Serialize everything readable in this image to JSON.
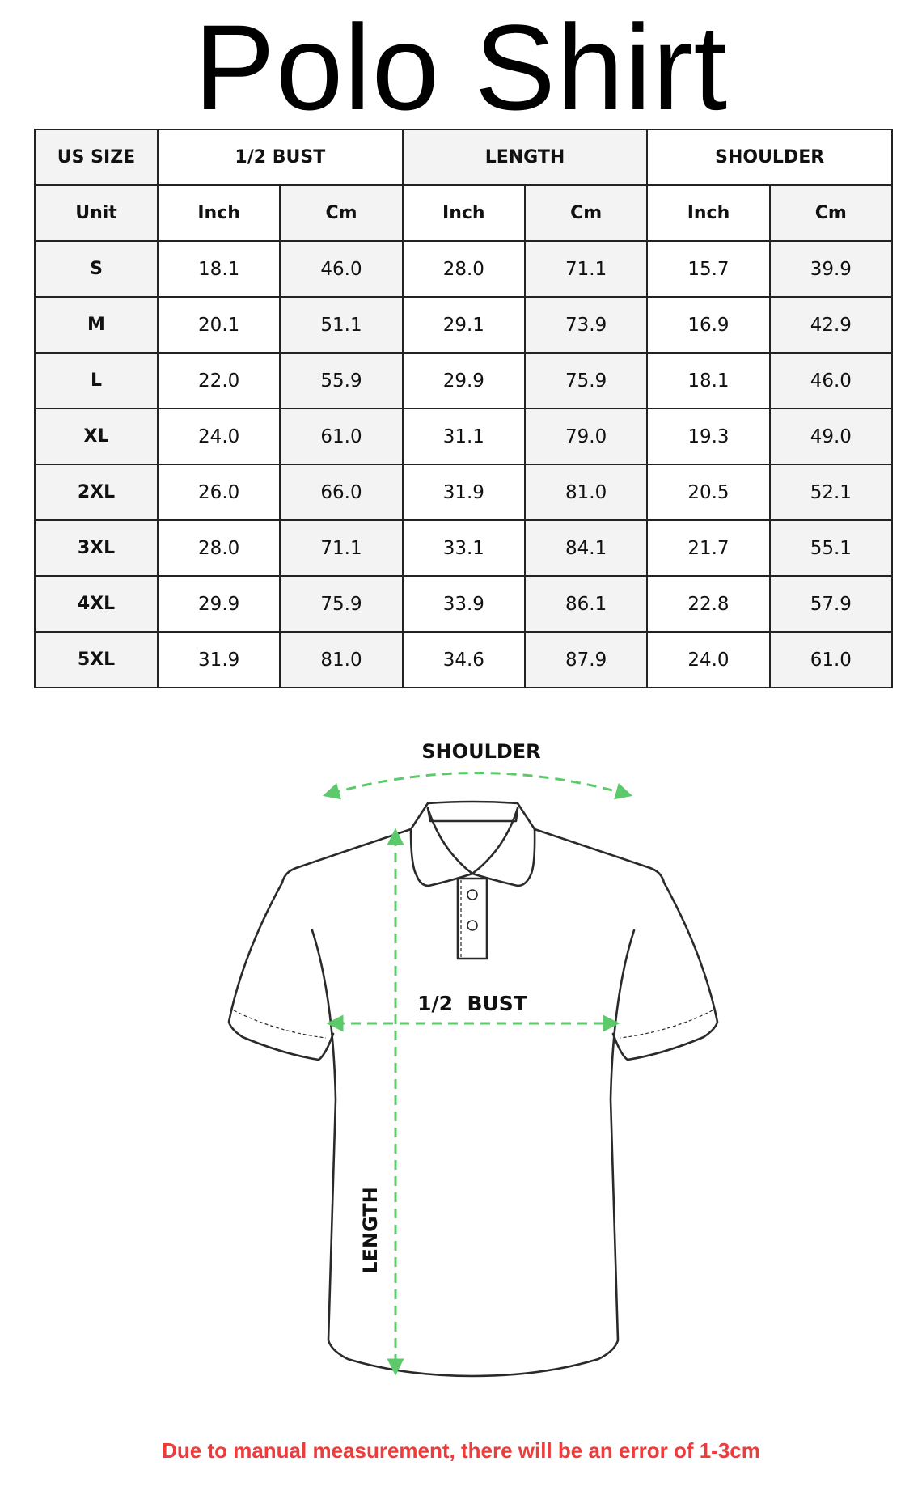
{
  "title": "Polo Shirt",
  "table": {
    "group_headers": [
      "US SIZE",
      "1/2 BUST",
      "LENGTH",
      "SHOULDER"
    ],
    "unit_row": [
      "Unit",
      "Inch",
      "Cm",
      "Inch",
      "Cm",
      "Inch",
      "Cm"
    ],
    "rows": [
      [
        "S",
        "18.1",
        "46.0",
        "28.0",
        "71.1",
        "15.7",
        "39.9"
      ],
      [
        "M",
        "20.1",
        "51.1",
        "29.1",
        "73.9",
        "16.9",
        "42.9"
      ],
      [
        "L",
        "22.0",
        "55.9",
        "29.9",
        "75.9",
        "18.1",
        "46.0"
      ],
      [
        "XL",
        "24.0",
        "61.0",
        "31.1",
        "79.0",
        "19.3",
        "49.0"
      ],
      [
        "2XL",
        "26.0",
        "66.0",
        "31.9",
        "81.0",
        "20.5",
        "52.1"
      ],
      [
        "3XL",
        "28.0",
        "71.1",
        "33.1",
        "84.1",
        "21.7",
        "55.1"
      ],
      [
        "4XL",
        "29.9",
        "75.9",
        "33.9",
        "86.1",
        "22.8",
        "57.9"
      ],
      [
        "5XL",
        "31.9",
        "81.0",
        "34.6",
        "87.9",
        "24.0",
        "61.0"
      ]
    ]
  },
  "diagram": {
    "shoulder_label": "SHOULDER",
    "bust_label": "1/2  BUST",
    "length_label": "LENGTH",
    "arrow_color": "#5cc96a",
    "outline_color": "#2a2a2a"
  },
  "footer_note": "Due to manual measurement, there will be an error of 1-3cm",
  "colors": {
    "note": "#ee3b3b",
    "cell_shade": "#f3f3f3"
  }
}
